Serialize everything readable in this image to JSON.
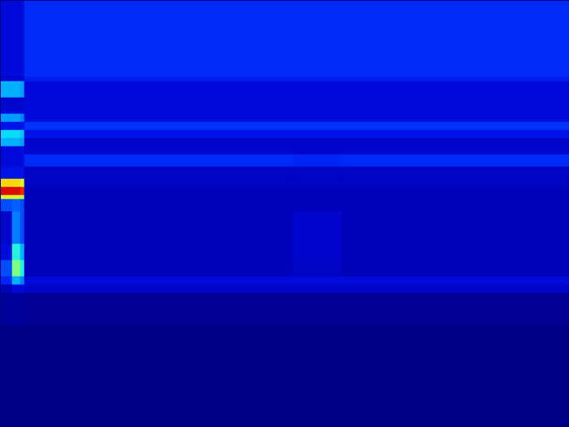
{
  "chart_data": {
    "type": "heatmap",
    "tick_labels": false,
    "grid": false,
    "xlim": [
      0,
      140
    ],
    "ylim": [
      0,
      105
    ],
    "value_range": [
      0,
      1
    ],
    "x_edges": [
      0,
      3,
      5,
      6,
      72,
      84,
      140
    ],
    "y_edges": [
      105,
      86,
      85,
      81,
      78,
      77,
      75,
      73,
      71,
      69,
      67,
      64,
      61,
      59,
      57,
      56,
      53,
      45,
      41,
      37,
      35,
      33,
      25,
      0
    ],
    "values": [
      [
        0.1,
        0.1,
        0.1,
        0.16,
        0.16,
        0.16
      ],
      [
        0.08,
        0.08,
        0.08,
        0.14,
        0.14,
        0.14
      ],
      [
        0.3,
        0.3,
        0.28,
        0.1,
        0.1,
        0.1
      ],
      [
        0.08,
        0.08,
        0.08,
        0.1,
        0.1,
        0.1
      ],
      [
        0.1,
        0.1,
        0.1,
        0.1,
        0.1,
        0.1
      ],
      [
        0.28,
        0.28,
        0.25,
        0.1,
        0.1,
        0.1
      ],
      [
        0.12,
        0.12,
        0.12,
        0.17,
        0.17,
        0.17
      ],
      [
        0.35,
        0.35,
        0.32,
        0.12,
        0.12,
        0.12
      ],
      [
        0.3,
        0.3,
        0.28,
        0.08,
        0.08,
        0.08
      ],
      [
        0.1,
        0.1,
        0.1,
        0.08,
        0.08,
        0.08
      ],
      [
        0.1,
        0.1,
        0.1,
        0.16,
        0.15,
        0.16
      ],
      [
        0.12,
        0.12,
        0.12,
        0.07,
        0.07,
        0.07
      ],
      [
        0.65,
        0.65,
        0.6,
        0.07,
        0.07,
        0.07
      ],
      [
        0.9,
        0.9,
        0.85,
        0.06,
        0.06,
        0.06
      ],
      [
        0.6,
        0.6,
        0.55,
        0.06,
        0.06,
        0.06
      ],
      [
        0.2,
        0.22,
        0.2,
        0.06,
        0.06,
        0.06
      ],
      [
        0.08,
        0.25,
        0.2,
        0.06,
        0.08,
        0.06
      ],
      [
        0.1,
        0.4,
        0.3,
        0.06,
        0.08,
        0.06
      ],
      [
        0.2,
        0.5,
        0.4,
        0.06,
        0.07,
        0.06
      ],
      [
        0.15,
        0.3,
        0.25,
        0.1,
        0.1,
        0.1
      ],
      [
        0.06,
        0.1,
        0.1,
        0.08,
        0.08,
        0.08
      ],
      [
        0.03,
        0.03,
        0.03,
        0.02,
        0.02,
        0.02
      ],
      [
        0.01,
        0.01,
        0.01,
        0.01,
        0.01,
        0.01
      ]
    ]
  }
}
